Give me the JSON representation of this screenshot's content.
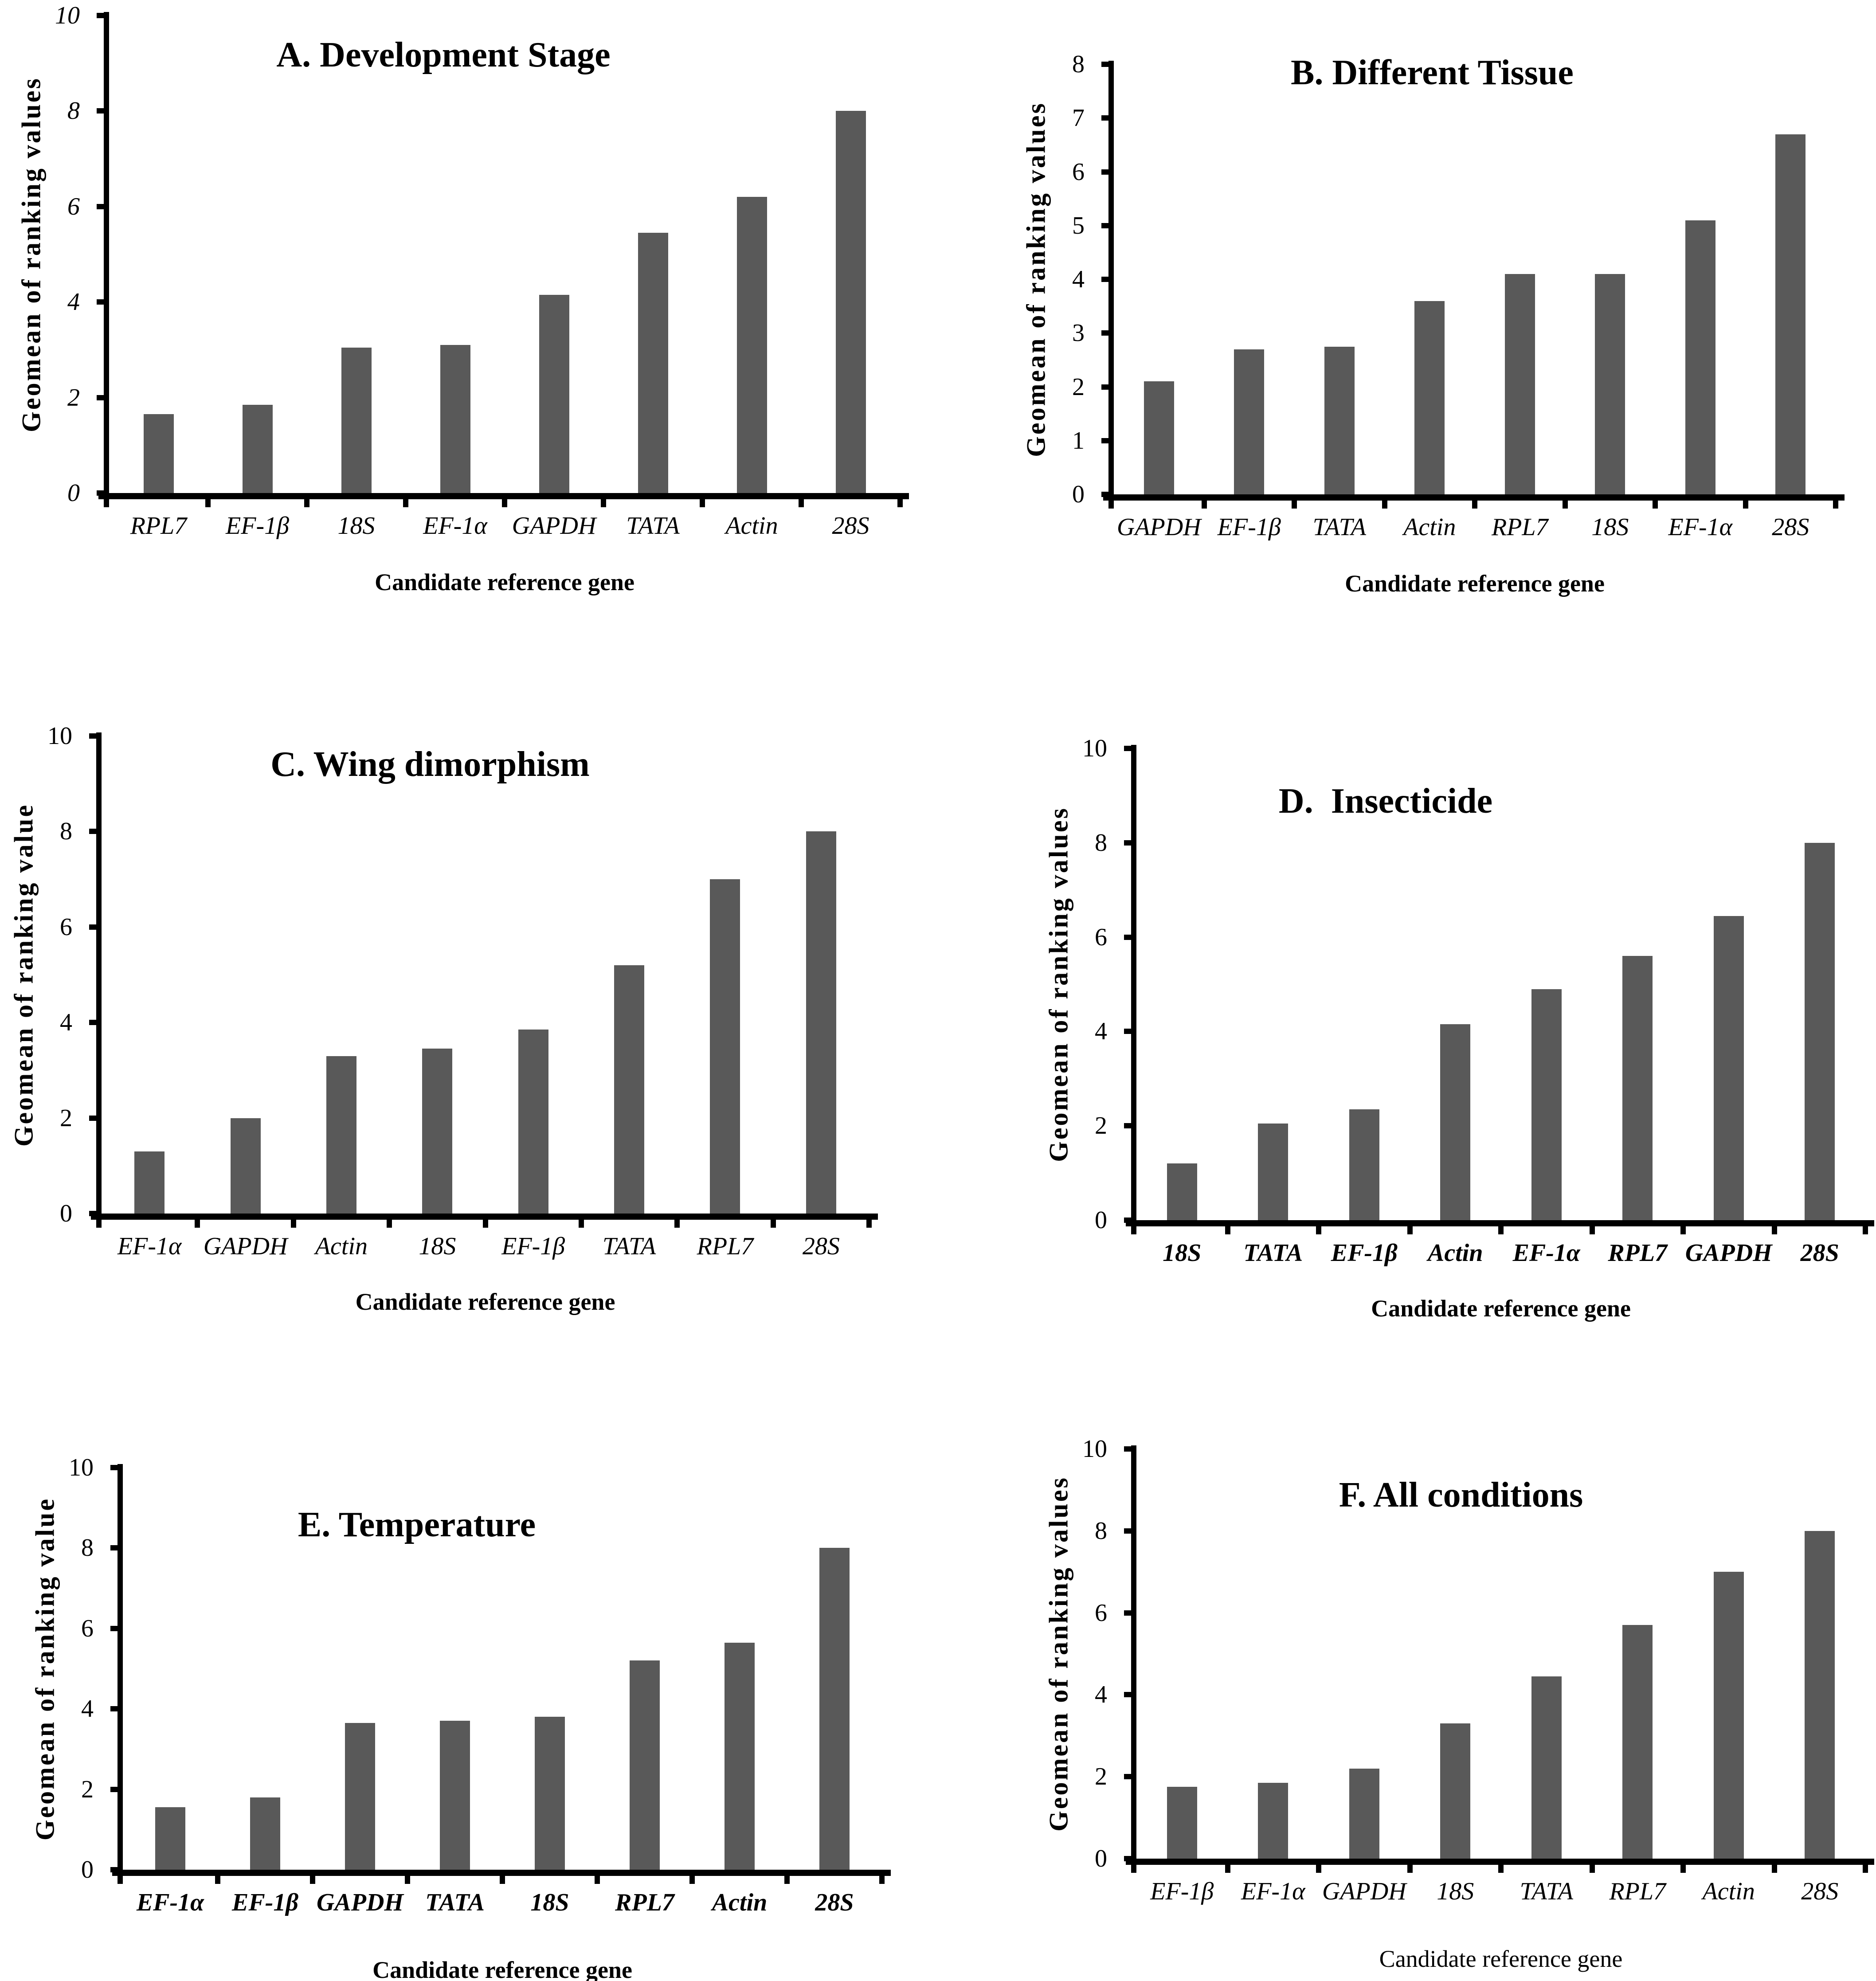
{
  "figure": {
    "bar_color": "#595959",
    "axis_color": "#000000",
    "background": "#ffffff"
  },
  "chart_data": [
    {
      "id": "A",
      "type": "bar",
      "title": "A. Development Stage",
      "ylabel": "Geomean of ranking values",
      "xlabel": "Candidate reference gene",
      "ylim": [
        0,
        10
      ],
      "ytick_step": 2,
      "grid": false,
      "legend": false,
      "ytick_italic": true,
      "xcat_bold": false,
      "xtitle_bold": true,
      "categories": [
        "RPL7",
        "EF-1β",
        "18S",
        "EF-1α",
        "GAPDH",
        "TATA",
        "Actin",
        "28S"
      ],
      "values": [
        1.65,
        1.85,
        3.05,
        3.1,
        4.15,
        5.45,
        6.2,
        8.0
      ]
    },
    {
      "id": "B",
      "type": "bar",
      "title": "B. Different Tissue",
      "ylabel": "Geomean of ranking values",
      "xlabel": "Candidate reference gene",
      "ylim": [
        0,
        8
      ],
      "ytick_step": 1,
      "grid": false,
      "legend": false,
      "ytick_italic": false,
      "xcat_bold": false,
      "xtitle_bold": true,
      "categories": [
        "GAPDH",
        "EF-1β",
        "TATA",
        "Actin",
        "RPL7",
        "18S",
        "EF-1α",
        "28S"
      ],
      "values": [
        2.1,
        2.7,
        2.75,
        3.6,
        4.1,
        4.1,
        5.1,
        6.7
      ]
    },
    {
      "id": "C",
      "type": "bar",
      "title": "C. Wing dimorphism",
      "ylabel": "Geomean of ranking value",
      "xlabel": "Candidate reference gene",
      "ylim": [
        0,
        10
      ],
      "ytick_step": 2,
      "grid": false,
      "legend": false,
      "ytick_italic": false,
      "xcat_bold": false,
      "xtitle_bold": true,
      "categories": [
        "EF-1α",
        "GAPDH",
        "Actin",
        "18S",
        "EF-1β",
        "TATA",
        "RPL7",
        "28S"
      ],
      "values": [
        1.3,
        2.0,
        3.3,
        3.45,
        3.85,
        5.2,
        7.0,
        8.0
      ]
    },
    {
      "id": "D",
      "type": "bar",
      "title": "D.  Insecticide",
      "ylabel": "Geomean of ranking values",
      "xlabel": "Candidate reference gene",
      "ylim": [
        0,
        10
      ],
      "ytick_step": 2,
      "grid": false,
      "legend": false,
      "ytick_italic": false,
      "xcat_bold": true,
      "xtitle_bold": true,
      "categories": [
        "18S",
        "TATA",
        "EF-1β",
        "Actin",
        "EF-1α",
        "RPL7",
        "GAPDH",
        "28S"
      ],
      "values": [
        1.2,
        2.05,
        2.35,
        4.15,
        4.9,
        5.6,
        6.45,
        8.0
      ]
    },
    {
      "id": "E",
      "type": "bar",
      "title": "E. Temperature",
      "ylabel": "Geomean of ranking value",
      "xlabel": "Candidate reference gene",
      "ylim": [
        0,
        10
      ],
      "ytick_step": 2,
      "grid": false,
      "legend": false,
      "ytick_italic": false,
      "xcat_bold": true,
      "xtitle_bold": true,
      "categories": [
        "EF-1α",
        "EF-1β",
        "GAPDH",
        "TATA",
        "18S",
        "RPL7",
        "Actin",
        "28S"
      ],
      "values": [
        1.55,
        1.8,
        3.65,
        3.7,
        3.8,
        5.2,
        5.65,
        8.0
      ]
    },
    {
      "id": "F",
      "type": "bar",
      "title": "F. All conditions",
      "ylabel": "Geomean of ranking values",
      "xlabel": "Candidate reference gene",
      "ylim": [
        0,
        10
      ],
      "ytick_step": 2,
      "grid": false,
      "legend": false,
      "ytick_italic": false,
      "xcat_bold": false,
      "xtitle_bold": false,
      "categories": [
        "EF-1β",
        "EF-1α",
        "GAPDH",
        "18S",
        "TATA",
        "RPL7",
        "Actin",
        "28S"
      ],
      "values": [
        1.75,
        1.85,
        2.2,
        3.3,
        4.45,
        5.7,
        7.0,
        8.0
      ]
    }
  ]
}
